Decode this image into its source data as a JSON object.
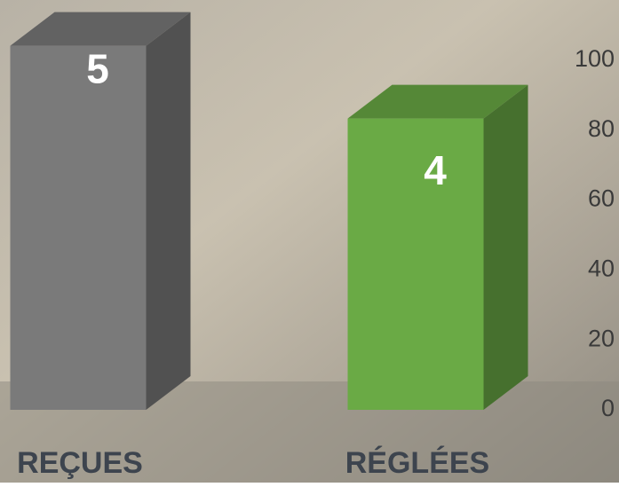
{
  "chart_data": {
    "type": "bar3d",
    "categories": [
      "REÇUES",
      "RÉGLÉES"
    ],
    "series": [
      {
        "values": [
          5,
          4
        ],
        "colors": [
          "#7a7a7a",
          "#6aaa45"
        ],
        "axis": "y2"
      }
    ],
    "ylim": [
      0,
      100
    ],
    "yticks": [
      0,
      20,
      40,
      60,
      80,
      100
    ],
    "y2lim": [
      0,
      4.8
    ]
  }
}
